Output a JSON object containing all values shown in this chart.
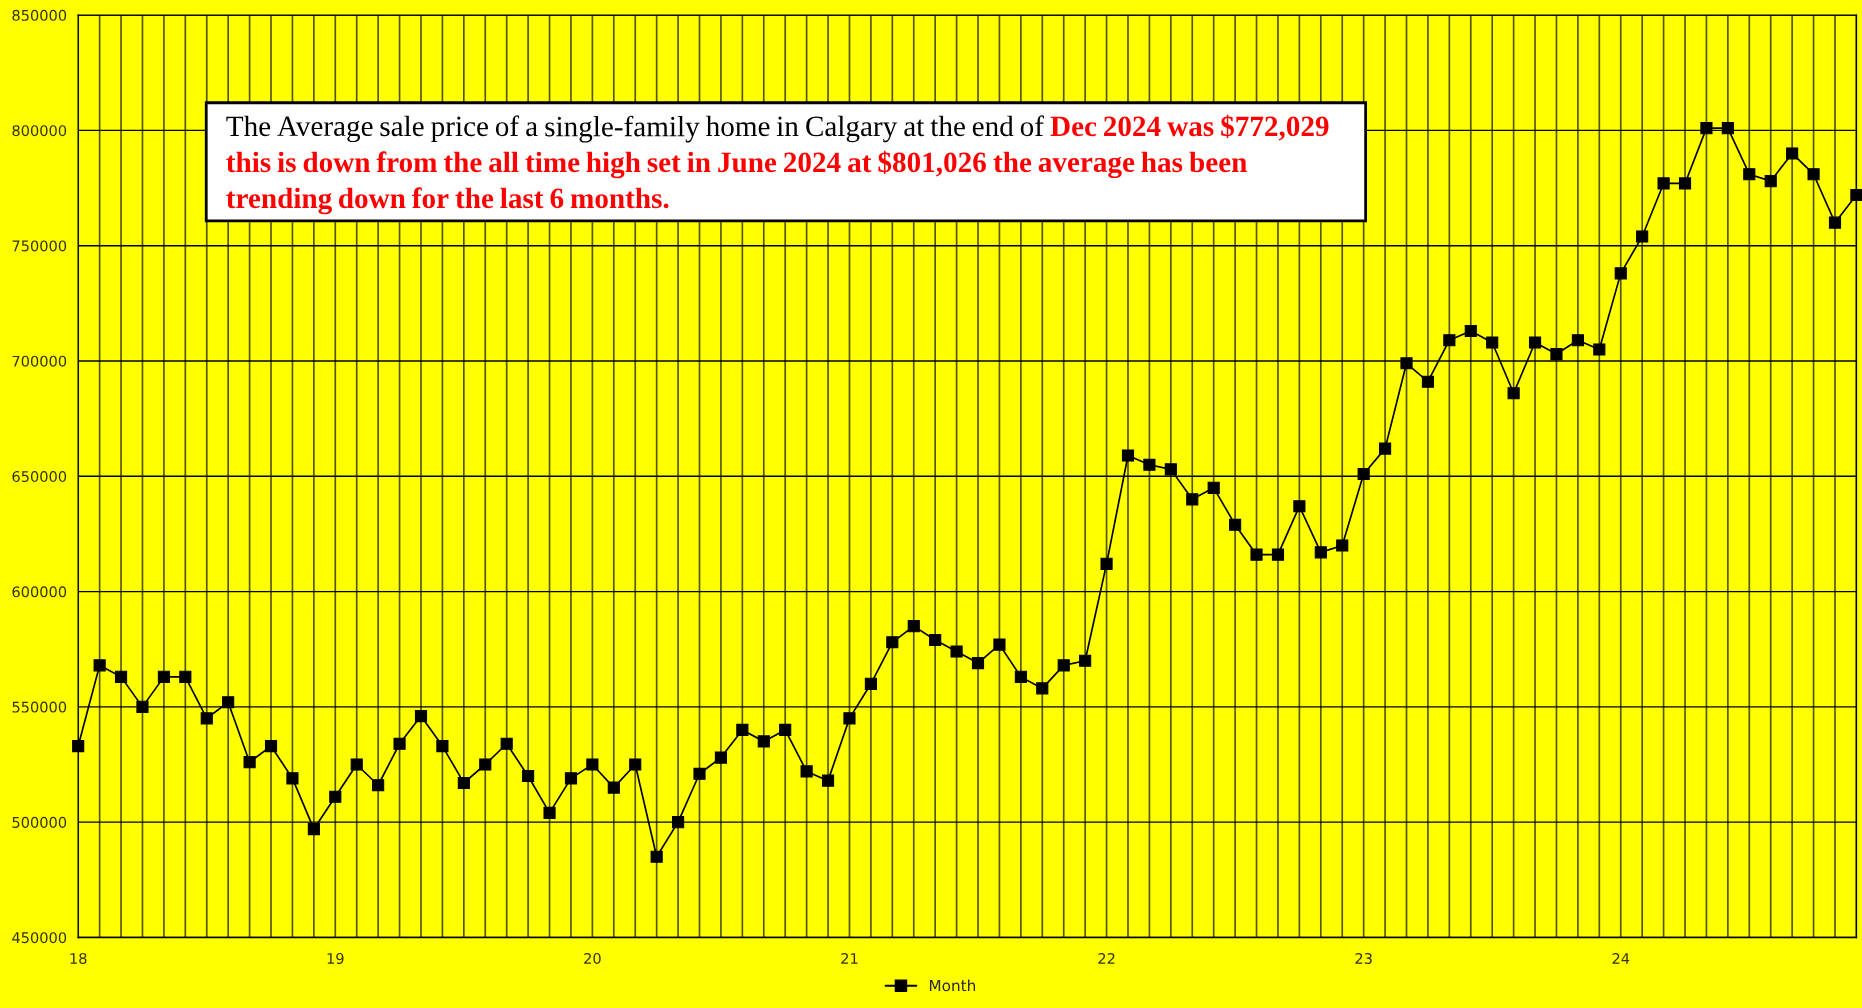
{
  "chart_data": {
    "type": "line",
    "categories": [
      "18",
      null,
      null,
      null,
      null,
      null,
      null,
      null,
      null,
      null,
      null,
      null,
      "19",
      null,
      null,
      null,
      null,
      null,
      null,
      null,
      null,
      null,
      null,
      null,
      "20",
      null,
      null,
      null,
      null,
      null,
      null,
      null,
      null,
      null,
      null,
      null,
      "21",
      null,
      null,
      null,
      null,
      null,
      null,
      null,
      null,
      null,
      null,
      null,
      "22",
      null,
      null,
      null,
      null,
      null,
      null,
      null,
      null,
      null,
      null,
      null,
      "23",
      null,
      null,
      null,
      null,
      null,
      null,
      null,
      null,
      null,
      null,
      null,
      "24",
      null,
      null,
      null,
      null,
      null,
      null,
      null,
      null,
      null,
      null,
      null
    ],
    "series": [
      {
        "name": "Month",
        "color": "#000000",
        "values": [
          533000,
          568000,
          563000,
          550000,
          563000,
          563000,
          545000,
          552000,
          526000,
          533000,
          519000,
          497000,
          511000,
          525000,
          516000,
          534000,
          546000,
          533000,
          517000,
          525000,
          534000,
          520000,
          504000,
          519000,
          525000,
          515000,
          525000,
          485000,
          500000,
          521000,
          528000,
          540000,
          535000,
          540000,
          522000,
          518000,
          545000,
          560000,
          578000,
          585000,
          579000,
          574000,
          569000,
          577000,
          563000,
          558000,
          568000,
          570000,
          612000,
          659000,
          655000,
          653000,
          640000,
          645000,
          629000,
          616000,
          616000,
          637000,
          617000,
          620000,
          651000,
          662000,
          699000,
          691000,
          709000,
          713000,
          708000,
          686000,
          708000,
          703000,
          709000,
          705000,
          738000,
          754000,
          777000,
          777000,
          801000,
          801000,
          781000,
          778000,
          790000,
          781000,
          760000,
          772000
        ]
      }
    ],
    "ylim": [
      450000,
      850000
    ],
    "yticks": [
      450000,
      500000,
      550000,
      600000,
      650000,
      700000,
      750000,
      800000,
      850000
    ],
    "grid": true,
    "legend": "bottom",
    "marker": "square",
    "line_style": "solid",
    "annotations": [
      "The Average sale price of a single-family home in Calgary at the end of",
      "Dec 2024 was $772,029 this is down from the all time high set in June 2024 at $801,026 the average has been trending down for the last 6 months."
    ]
  }
}
